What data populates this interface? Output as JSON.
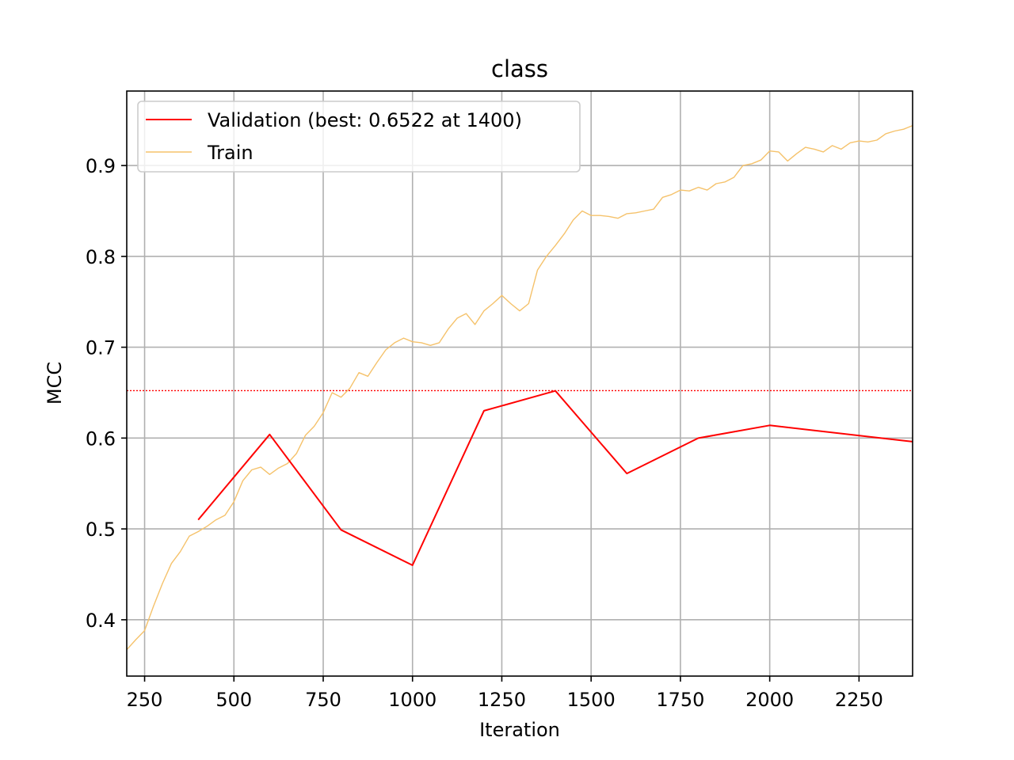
{
  "chart_data": {
    "type": "line",
    "title": "class",
    "xlabel": "Iteration",
    "ylabel": "MCC",
    "xlim": [
      200,
      2400
    ],
    "ylim": [
      0.338,
      0.982
    ],
    "xticks": [
      250,
      500,
      750,
      1000,
      1250,
      1500,
      1750,
      2000,
      2250
    ],
    "xtick_labels": [
      "250",
      "500",
      "750",
      "1000",
      "1250",
      "1500",
      "1750",
      "2000",
      "2250"
    ],
    "yticks": [
      0.4,
      0.5,
      0.6,
      0.7,
      0.8,
      0.9
    ],
    "ytick_labels": [
      "0.4",
      "0.5",
      "0.6",
      "0.7",
      "0.8",
      "0.9"
    ],
    "grid": true,
    "legend_position": "top-left",
    "series": [
      {
        "name": "Validation (best: 0.6522 at 1400)",
        "color": "#ff0000",
        "x": [
          400,
          600,
          800,
          1000,
          1200,
          1400,
          1600,
          1800,
          2000,
          2400
        ],
        "y": [
          0.51,
          0.604,
          0.499,
          0.46,
          0.63,
          0.652,
          0.561,
          0.6,
          0.614,
          0.596
        ]
      },
      {
        "name": "Train",
        "color": "#f5c26b",
        "x": [
          200,
          225,
          250,
          275,
          300,
          325,
          350,
          375,
          400,
          425,
          450,
          475,
          500,
          525,
          550,
          575,
          600,
          625,
          650,
          675,
          700,
          725,
          750,
          775,
          800,
          825,
          850,
          875,
          900,
          925,
          950,
          975,
          1000,
          1025,
          1050,
          1075,
          1100,
          1125,
          1150,
          1175,
          1200,
          1225,
          1250,
          1275,
          1300,
          1325,
          1350,
          1375,
          1400,
          1425,
          1450,
          1475,
          1500,
          1525,
          1550,
          1575,
          1600,
          1625,
          1650,
          1675,
          1700,
          1725,
          1750,
          1775,
          1800,
          1825,
          1850,
          1875,
          1900,
          1925,
          1950,
          1975,
          2000,
          2025,
          2050,
          2075,
          2100,
          2125,
          2150,
          2175,
          2200,
          2225,
          2250,
          2275,
          2300,
          2325,
          2350,
          2375,
          2400
        ],
        "y": [
          0.367,
          0.378,
          0.388,
          0.415,
          0.44,
          0.462,
          0.475,
          0.492,
          0.497,
          0.503,
          0.51,
          0.515,
          0.53,
          0.553,
          0.565,
          0.568,
          0.56,
          0.567,
          0.572,
          0.583,
          0.603,
          0.613,
          0.628,
          0.65,
          0.645,
          0.655,
          0.672,
          0.668,
          0.683,
          0.697,
          0.705,
          0.71,
          0.706,
          0.705,
          0.702,
          0.705,
          0.72,
          0.732,
          0.737,
          0.725,
          0.74,
          0.748,
          0.757,
          0.748,
          0.74,
          0.748,
          0.785,
          0.8,
          0.812,
          0.825,
          0.84,
          0.85,
          0.845,
          0.845,
          0.844,
          0.842,
          0.847,
          0.848,
          0.85,
          0.852,
          0.865,
          0.868,
          0.873,
          0.872,
          0.876,
          0.873,
          0.88,
          0.882,
          0.887,
          0.9,
          0.902,
          0.906,
          0.916,
          0.915,
          0.905,
          0.913,
          0.92,
          0.918,
          0.915,
          0.922,
          0.918,
          0.925,
          0.927,
          0.926,
          0.928,
          0.935,
          0.938,
          0.94,
          0.944
        ]
      }
    ],
    "reference_line": {
      "y": 0.6522,
      "color": "#ff0000",
      "style": "dotted"
    }
  }
}
